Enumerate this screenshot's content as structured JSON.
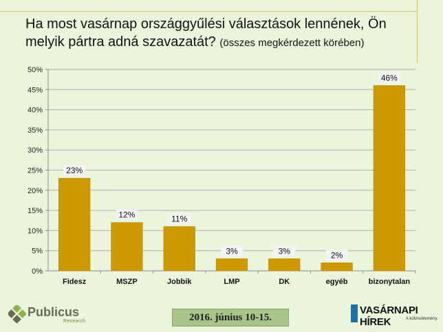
{
  "title": {
    "main": "Ha most vasárnap országgyűlési választások lennének, Ön melyik pártra adná szavazatát?",
    "sub": "(összes megkérdezett körében)"
  },
  "chart_data": {
    "type": "bar",
    "categories": [
      "Fidesz",
      "MSZP",
      "Jobbik",
      "LMP",
      "DK",
      "egyéb",
      "bizonytalan"
    ],
    "values": [
      23,
      12,
      11,
      3,
      3,
      2,
      46
    ],
    "data_labels": [
      "23%",
      "12%",
      "11%",
      "3%",
      "3%",
      "2%",
      "46%"
    ],
    "ylim": [
      0,
      50
    ],
    "yticks": [
      "0%",
      "5%",
      "10%",
      "15%",
      "20%",
      "25%",
      "30%",
      "35%",
      "40%",
      "45%",
      "50%"
    ],
    "grid": true,
    "bar_color": "#cc9900"
  },
  "footer": {
    "left_logo": "Publicus",
    "left_logo_sub": "Research",
    "date": "2016. június 10-15.",
    "right_logo": "VASÁRNAPI HÍREK",
    "right_logo_sub": "A különvélemény."
  },
  "colors": {
    "background": "#ebf5dc",
    "bar": "#cc9900",
    "grid": "#b0b0b0",
    "date_box": "#a9c48b"
  }
}
